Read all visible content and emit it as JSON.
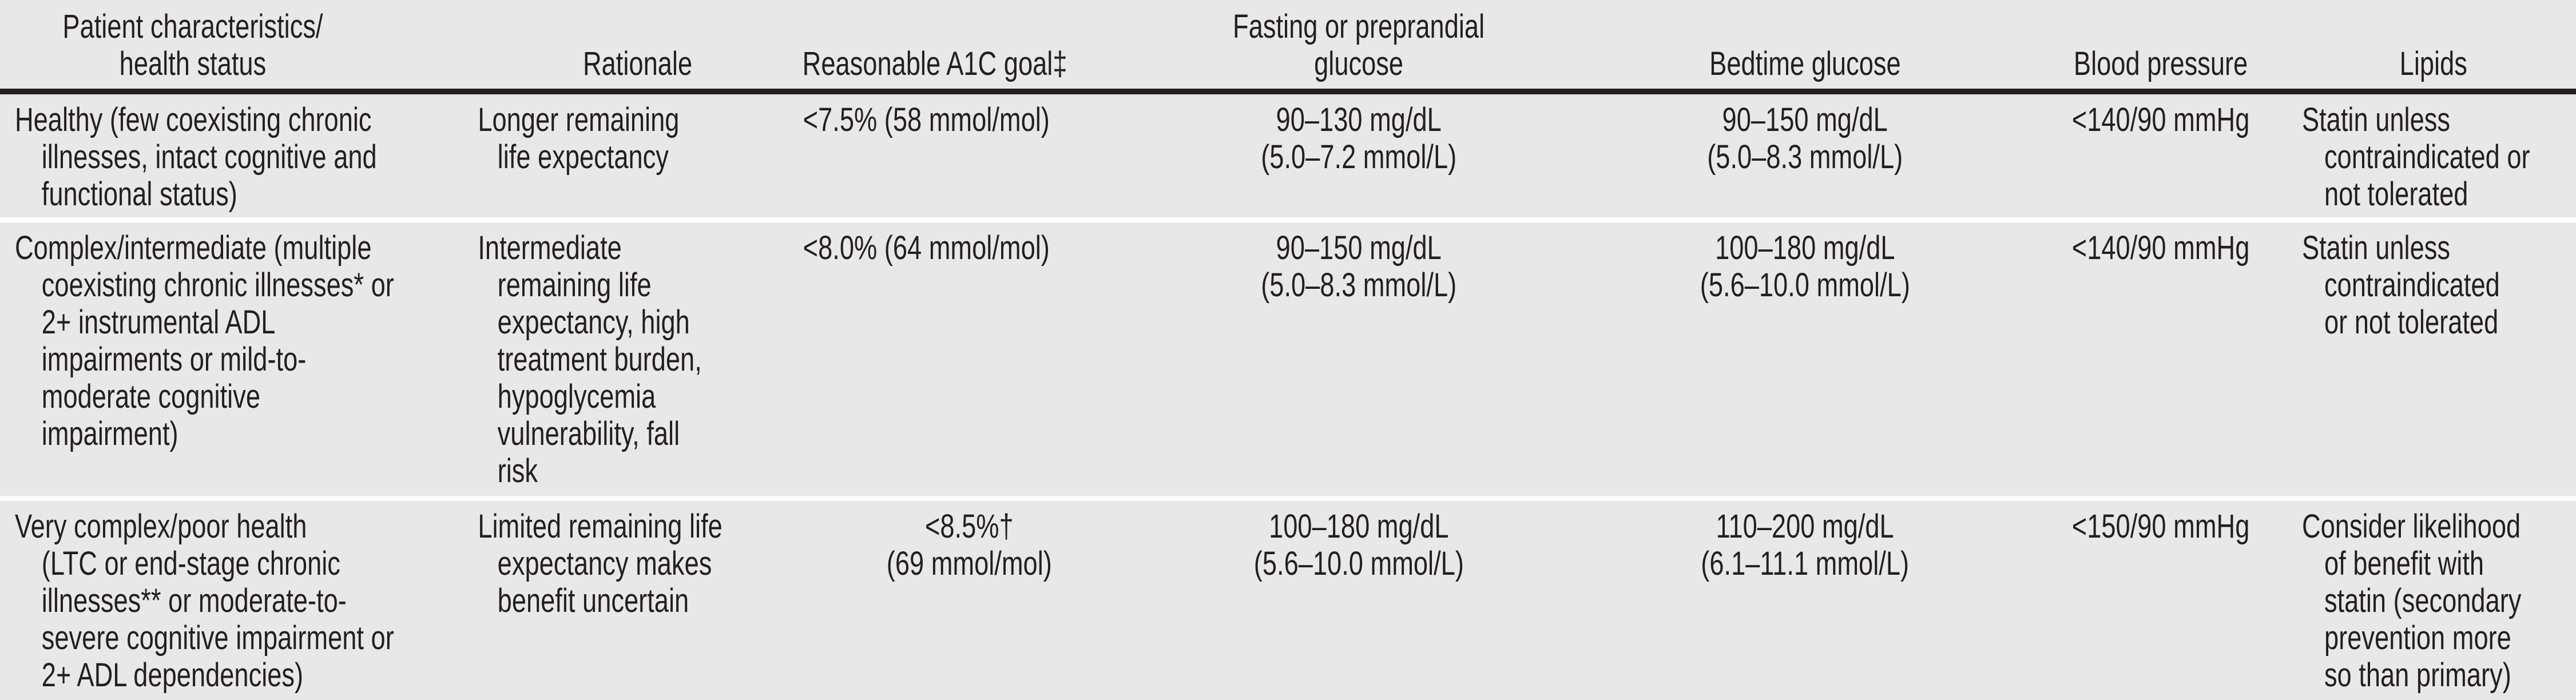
{
  "colors": {
    "background": "#e8e8e8",
    "text": "#231f20",
    "header_rule": "#231f20",
    "row_separator": "#fdfdfd"
  },
  "table": {
    "header": [
      "Patient characteristics/\nhealth status",
      "Rationale",
      "Reasonable A1C goal‡",
      "Fasting or preprandial\nglucose",
      "Bedtime glucose",
      "Blood pressure",
      "Lipids"
    ],
    "rows": [
      {
        "cells": [
          "Healthy (few coexisting chronic\nillnesses, intact cognitive and\nfunctional status)",
          "Longer remaining\nlife expectancy",
          "<7.5% (58 mmol/mol)",
          "90–130 mg/dL\n(5.0–7.2 mmol/L)",
          "90–150 mg/dL\n(5.0–8.3 mmol/L)",
          "<140/90 mmHg",
          "Statin unless\ncontraindicated or\nnot tolerated"
        ]
      },
      {
        "cells": [
          "Complex/intermediate (multiple\ncoexisting chronic illnesses* or\n2+ instrumental ADL\nimpairments or mild-to-\nmoderate cognitive\nimpairment)",
          "Intermediate\nremaining life\nexpectancy, high\ntreatment burden,\nhypoglycemia\nvulnerability, fall\nrisk",
          "<8.0% (64 mmol/mol)",
          "90–150 mg/dL\n(5.0–8.3 mmol/L)",
          "100–180 mg/dL\n(5.6–10.0 mmol/L)",
          "<140/90 mmHg",
          "Statin unless\ncontraindicated\nor not tolerated"
        ]
      },
      {
        "cells": [
          "Very complex/poor health\n(LTC or end-stage chronic\nillnesses** or moderate-to-\nsevere cognitive impairment or\n2+ ADL dependencies)",
          "Limited remaining life\nexpectancy makes\nbenefit uncertain",
          "<8.5%†\n(69 mmol/mol)",
          "100–180 mg/dL\n(5.6–10.0 mmol/L)",
          "110–200 mg/dL\n(6.1–11.1 mmol/L)",
          "<150/90 mmHg",
          "Consider likelihood\nof benefit with\nstatin (secondary\nprevention more\nso than primary)"
        ]
      }
    ]
  }
}
